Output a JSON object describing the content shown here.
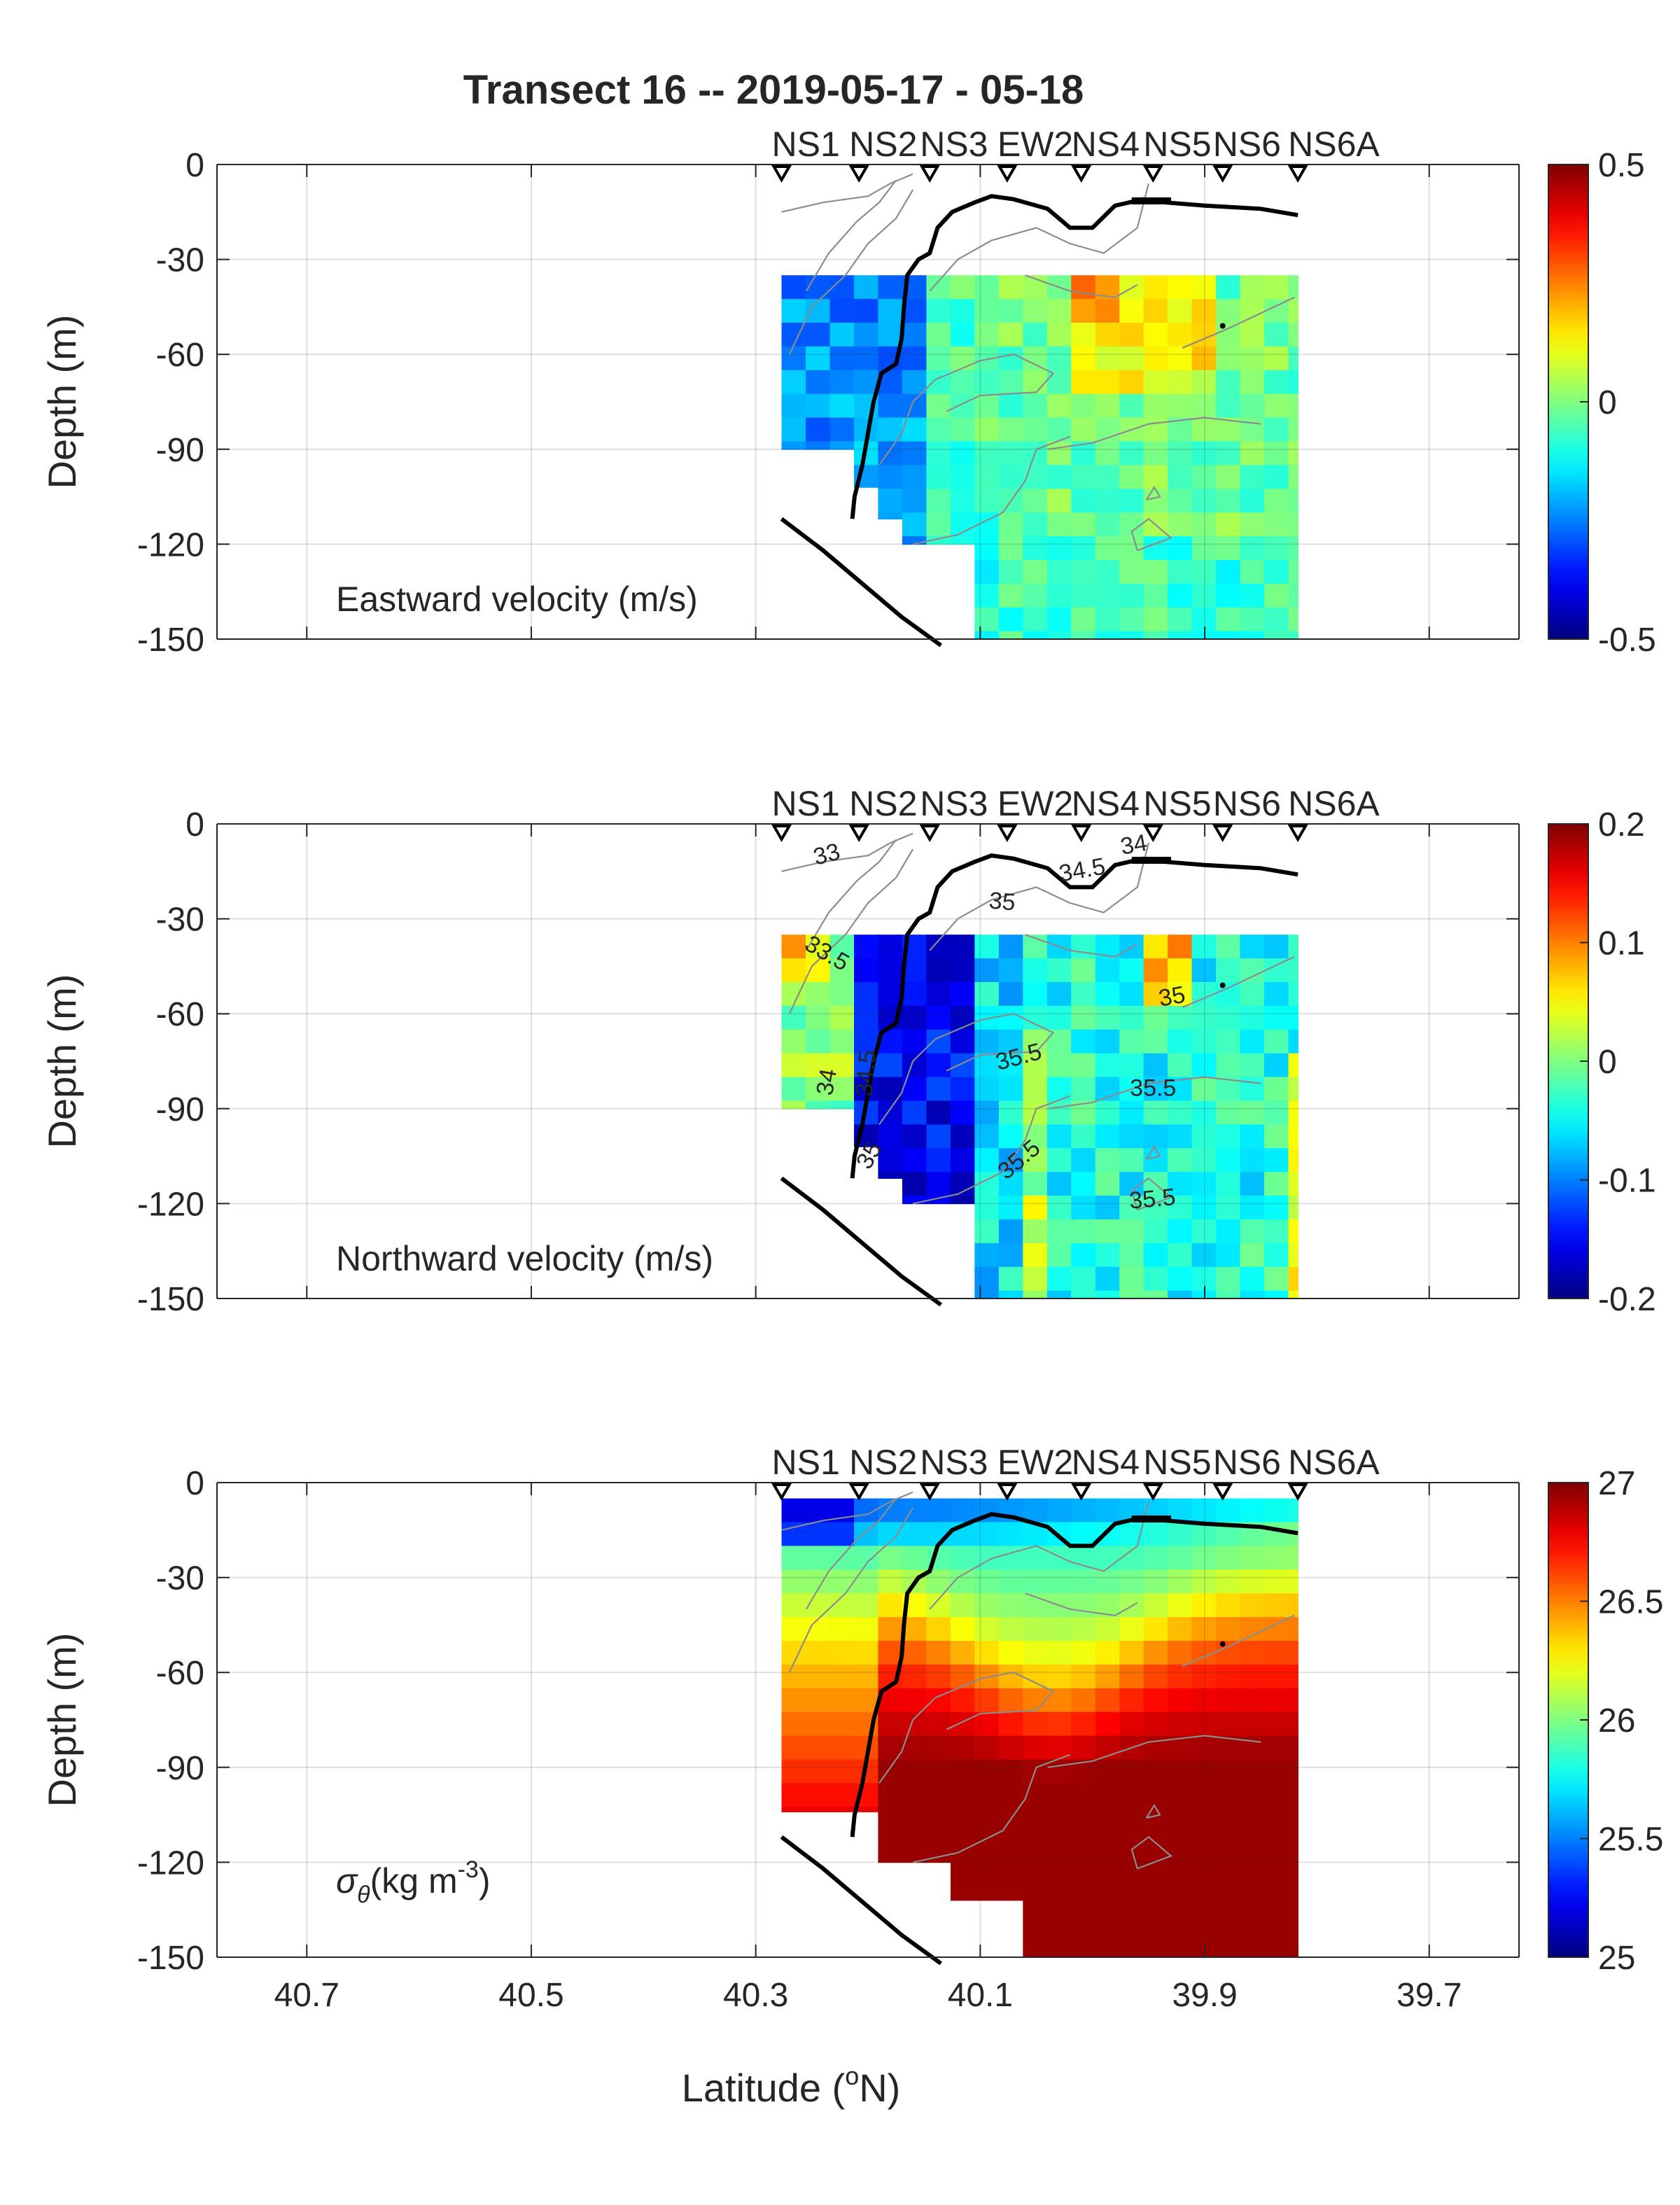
{
  "title": "Transect 16 -- 2019-05-17 - 05-18",
  "x_axis": {
    "label": "Latitude (",
    "label_sup": "o",
    "label_end": "N)",
    "range": [
      40.78,
      39.62
    ],
    "reversed": true,
    "ticks": [
      40.7,
      40.5,
      40.3,
      40.1,
      39.9,
      39.7
    ],
    "tick_labels": [
      "40.7",
      "40.5",
      "40.3",
      "40.1",
      "39.9",
      "39.7"
    ]
  },
  "y_axis": {
    "label": "Depth (m)",
    "range": [
      -150,
      0
    ],
    "ticks": [
      0,
      -30,
      -60,
      -90,
      -120,
      -150
    ],
    "tick_labels": [
      "0",
      "-30",
      "-60",
      "-90",
      "-120",
      "-150"
    ]
  },
  "stations": [
    {
      "name": "NS1",
      "lat": 40.277
    },
    {
      "name": "NS2",
      "lat": 40.208
    },
    {
      "name": "NS3",
      "lat": 40.145
    },
    {
      "name": "EW2",
      "lat": 40.076
    },
    {
      "name": "NS4",
      "lat": 40.01
    },
    {
      "name": "NS5",
      "lat": 39.946
    },
    {
      "name": "NS6",
      "lat": 39.884
    },
    {
      "name": "NS6A",
      "lat": 39.817
    }
  ],
  "chart_data": [
    {
      "type": "heatmap",
      "panel_label": "Eastward velocity (m/s)",
      "colormap": "jet",
      "clim": [
        -0.5,
        0.5
      ],
      "colorbar_ticks": [
        "0.5",
        "0",
        "-0.5"
      ],
      "colorbar_tick_values": [
        0.5,
        0,
        -0.5
      ]
    },
    {
      "type": "heatmap",
      "panel_label": "Northward velocity (m/s)",
      "colormap": "jet",
      "clim": [
        -0.2,
        0.2
      ],
      "colorbar_ticks": [
        "0.2",
        "0.1",
        "0",
        "-0.1",
        "-0.2"
      ],
      "colorbar_tick_values": [
        0.2,
        0.1,
        0,
        -0.1,
        -0.2
      ],
      "contour_labels": [
        {
          "text": "33",
          "lat": 40.235,
          "depth": -12,
          "rot": -15
        },
        {
          "text": "34",
          "lat": 39.962,
          "depth": -9,
          "rot": -10
        },
        {
          "text": "34.5",
          "lat": 40.008,
          "depth": -17,
          "rot": -10
        },
        {
          "text": "35",
          "lat": 40.081,
          "depth": -27,
          "rot": 5
        },
        {
          "text": "33.5",
          "lat": 40.24,
          "depth": -43,
          "rot": 30
        },
        {
          "text": "35",
          "lat": 39.928,
          "depth": -57,
          "rot": -10
        },
        {
          "text": "34",
          "lat": 40.23,
          "depth": -82,
          "rot": -80
        },
        {
          "text": "34.5",
          "lat": 40.195,
          "depth": -79,
          "rot": -85
        },
        {
          "text": "35.5",
          "lat": 40.064,
          "depth": -76,
          "rot": -15
        },
        {
          "text": "35.5",
          "lat": 39.946,
          "depth": -86,
          "rot": 0
        },
        {
          "text": "35",
          "lat": 40.193,
          "depth": -106,
          "rot": -60
        },
        {
          "text": "35.5",
          "lat": 40.061,
          "depth": -108,
          "rot": -40
        },
        {
          "text": "35.5",
          "lat": 39.946,
          "depth": -121,
          "rot": -5
        }
      ]
    },
    {
      "type": "heatmap",
      "panel_label": "(kg m",
      "panel_label_symbol": "σ",
      "panel_label_sub": "θ",
      "panel_label_sup": "-3",
      "panel_label_end": ")",
      "colormap": "jet",
      "clim": [
        25,
        27
      ],
      "colorbar_ticks": [
        "27",
        "26.5",
        "26",
        "25.5",
        "25"
      ],
      "colorbar_tick_values": [
        27,
        26.5,
        26,
        25.5,
        25
      ]
    }
  ]
}
